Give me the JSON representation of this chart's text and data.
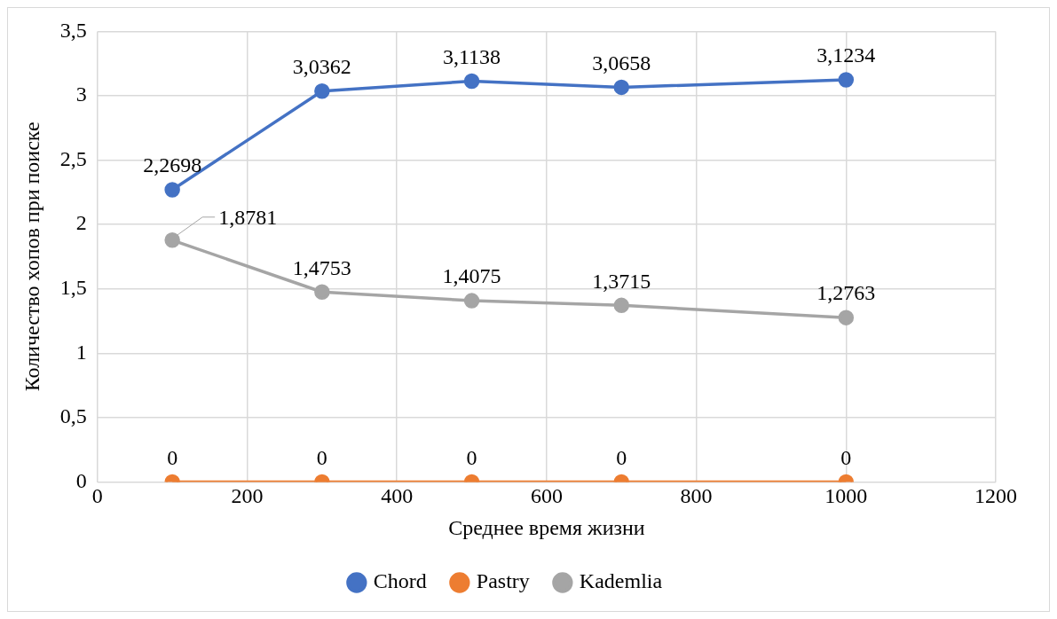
{
  "chart_data": {
    "type": "line",
    "xlabel": "Среднее время жизни",
    "ylabel": "Количество хопов при поиске",
    "x": [
      100,
      300,
      500,
      700,
      1000
    ],
    "series": [
      {
        "name": "Chord",
        "color": "#4472c4",
        "values": [
          2.2698,
          3.0362,
          3.1138,
          3.0658,
          3.1234
        ],
        "value_labels": [
          "2,2698",
          "3,0362",
          "3,1138",
          "3,0658",
          "3,1234"
        ]
      },
      {
        "name": "Pastry",
        "color": "#ed7d31",
        "values": [
          0,
          0,
          0,
          0,
          0
        ],
        "value_labels": [
          "0",
          "0",
          "0",
          "0",
          "0"
        ]
      },
      {
        "name": "Kademlia",
        "color": "#a5a5a5",
        "values": [
          1.8781,
          1.4753,
          1.4075,
          1.3715,
          1.2763
        ],
        "value_labels": [
          "1,8781",
          "1,4753",
          "1,4075",
          "1,3715",
          "1,2763"
        ]
      }
    ],
    "xlim": [
      0,
      1200
    ],
    "xticks": [
      0,
      200,
      400,
      600,
      800,
      1000,
      1200
    ],
    "ylim": [
      0,
      3.5
    ],
    "yticks": [
      0,
      {
        "value": 0.5,
        "label": "0,5"
      },
      1,
      {
        "value": 1.5,
        "label": "1,5"
      },
      2,
      {
        "value": 2.5,
        "label": "2,5"
      },
      3,
      {
        "value": 3.5,
        "label": "3,5"
      }
    ],
    "grid": true,
    "legend": "bottom",
    "marker": "circle",
    "line_style": "solid"
  }
}
